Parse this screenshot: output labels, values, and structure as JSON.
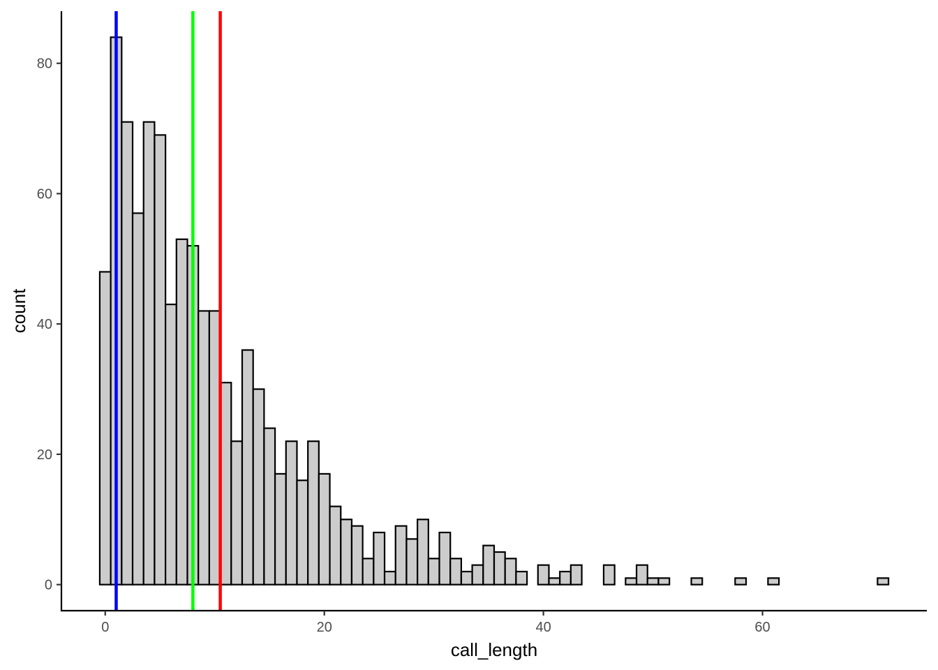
{
  "chart_data": {
    "type": "bar",
    "subtype": "histogram",
    "title": "",
    "xlabel": "call_length",
    "ylabel": "count",
    "xlim": [
      -4,
      75
    ],
    "ylim": [
      -4,
      88
    ],
    "x_ticks": [
      0,
      20,
      40,
      60
    ],
    "y_ticks": [
      0,
      20,
      40,
      60,
      80
    ],
    "grid": false,
    "bin_width": 1,
    "bins_start": 0,
    "bins": [
      {
        "x": 0,
        "count": 48
      },
      {
        "x": 1,
        "count": 84
      },
      {
        "x": 2,
        "count": 71
      },
      {
        "x": 3,
        "count": 57
      },
      {
        "x": 4,
        "count": 71
      },
      {
        "x": 5,
        "count": 69
      },
      {
        "x": 6,
        "count": 43
      },
      {
        "x": 7,
        "count": 53
      },
      {
        "x": 8,
        "count": 52
      },
      {
        "x": 9,
        "count": 42
      },
      {
        "x": 10,
        "count": 42
      },
      {
        "x": 11,
        "count": 31
      },
      {
        "x": 12,
        "count": 22
      },
      {
        "x": 13,
        "count": 36
      },
      {
        "x": 14,
        "count": 30
      },
      {
        "x": 15,
        "count": 24
      },
      {
        "x": 16,
        "count": 17
      },
      {
        "x": 17,
        "count": 22
      },
      {
        "x": 18,
        "count": 16
      },
      {
        "x": 19,
        "count": 22
      },
      {
        "x": 20,
        "count": 17
      },
      {
        "x": 21,
        "count": 12
      },
      {
        "x": 22,
        "count": 10
      },
      {
        "x": 23,
        "count": 9
      },
      {
        "x": 24,
        "count": 4
      },
      {
        "x": 25,
        "count": 8
      },
      {
        "x": 26,
        "count": 2
      },
      {
        "x": 27,
        "count": 9
      },
      {
        "x": 28,
        "count": 7
      },
      {
        "x": 29,
        "count": 10
      },
      {
        "x": 30,
        "count": 4
      },
      {
        "x": 31,
        "count": 8
      },
      {
        "x": 32,
        "count": 4
      },
      {
        "x": 33,
        "count": 2
      },
      {
        "x": 34,
        "count": 3
      },
      {
        "x": 35,
        "count": 6
      },
      {
        "x": 36,
        "count": 5
      },
      {
        "x": 37,
        "count": 4
      },
      {
        "x": 38,
        "count": 2
      },
      {
        "x": 39,
        "count": 0
      },
      {
        "x": 40,
        "count": 3
      },
      {
        "x": 41,
        "count": 1
      },
      {
        "x": 42,
        "count": 2
      },
      {
        "x": 43,
        "count": 3
      },
      {
        "x": 44,
        "count": 0
      },
      {
        "x": 45,
        "count": 0
      },
      {
        "x": 46,
        "count": 3
      },
      {
        "x": 47,
        "count": 0
      },
      {
        "x": 48,
        "count": 1
      },
      {
        "x": 49,
        "count": 3
      },
      {
        "x": 50,
        "count": 1
      },
      {
        "x": 51,
        "count": 1
      },
      {
        "x": 52,
        "count": 0
      },
      {
        "x": 53,
        "count": 0
      },
      {
        "x": 54,
        "count": 1
      },
      {
        "x": 55,
        "count": 0
      },
      {
        "x": 56,
        "count": 0
      },
      {
        "x": 57,
        "count": 0
      },
      {
        "x": 58,
        "count": 1
      },
      {
        "x": 59,
        "count": 0
      },
      {
        "x": 60,
        "count": 0
      },
      {
        "x": 61,
        "count": 1
      },
      {
        "x": 62,
        "count": 0
      },
      {
        "x": 63,
        "count": 0
      },
      {
        "x": 64,
        "count": 0
      },
      {
        "x": 65,
        "count": 0
      },
      {
        "x": 66,
        "count": 0
      },
      {
        "x": 67,
        "count": 0
      },
      {
        "x": 68,
        "count": 0
      },
      {
        "x": 69,
        "count": 0
      },
      {
        "x": 70,
        "count": 0
      },
      {
        "x": 71,
        "count": 1
      }
    ],
    "vlines": [
      {
        "x": 1,
        "color": "#0000ff"
      },
      {
        "x": 8,
        "color": "#00ff00"
      },
      {
        "x": 10.5,
        "color": "#ff0000"
      }
    ],
    "bar_fill": "#cccccc",
    "bar_stroke": "#000000"
  }
}
